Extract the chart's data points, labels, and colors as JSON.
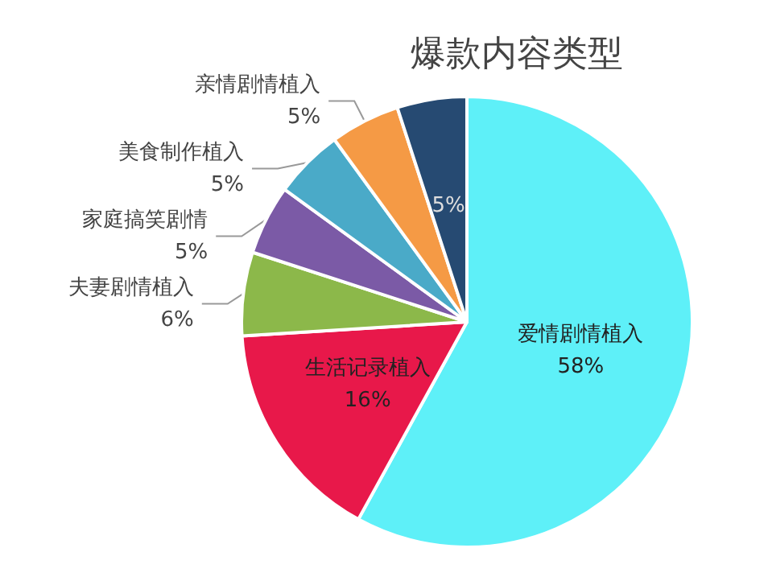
{
  "chart_data": {
    "type": "pie",
    "title": "爆款内容类型",
    "categories": [
      "爱情剧情植入",
      "生活记录植入",
      "夫妻剧情植入",
      "家庭搞笑剧情",
      "美食制作植入",
      "亲情剧情植入",
      null
    ],
    "values": [
      58,
      16,
      6,
      5,
      5,
      5,
      5
    ],
    "colors": [
      "#5ef0f8",
      "#e8184a",
      "#8cb84a",
      "#7b5aa6",
      "#4aaac8",
      "#f59a45",
      "#264a72"
    ],
    "value_labels": [
      "58%",
      "16%",
      "6%",
      "5%",
      "5%",
      "5%",
      "5%"
    ],
    "legend": false
  }
}
